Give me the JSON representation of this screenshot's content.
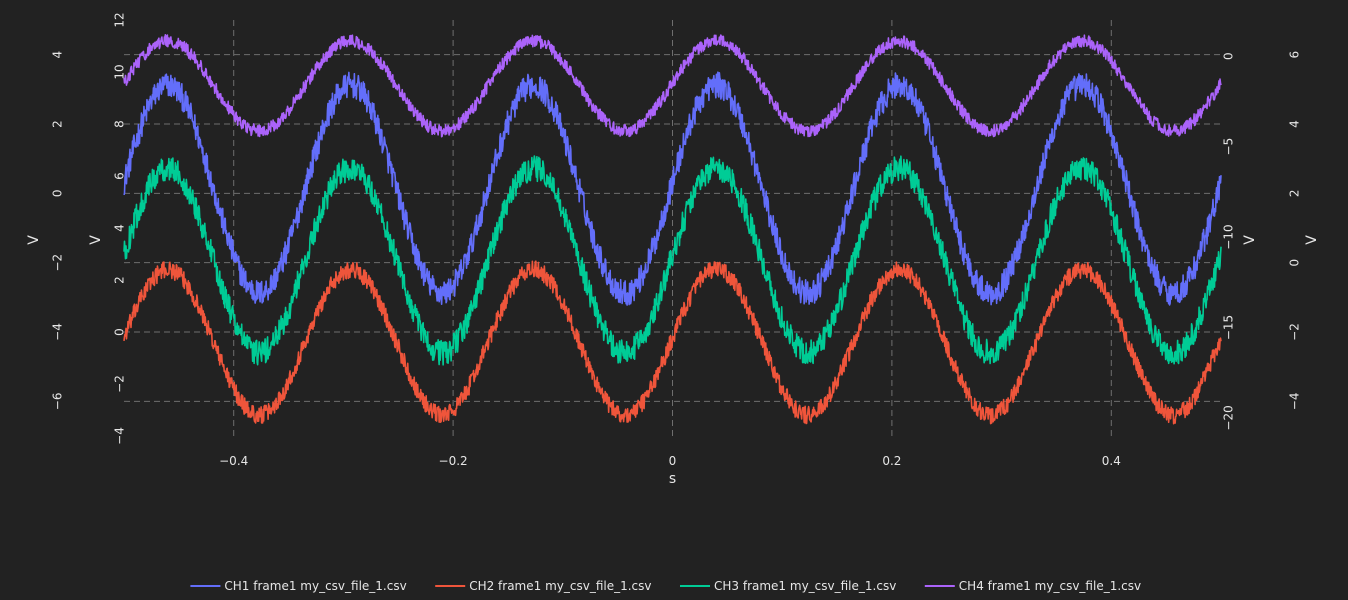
{
  "chart_data": {
    "type": "line",
    "title": "",
    "xlabel": "s",
    "xlim": [
      -0.5,
      0.5
    ],
    "x_ticks": [
      -0.4,
      -0.2,
      0,
      0.2,
      0.4
    ],
    "x_tick_labels": [
      "−0.4",
      "−0.2",
      "0",
      "0.2",
      "0.4"
    ],
    "grid": true,
    "legend_position": "bottom",
    "axes": [
      {
        "id": "y1",
        "label": "V",
        "ylim": [
          -7,
          5
        ],
        "ticks": [
          -6,
          -4,
          -2,
          0,
          2,
          4
        ],
        "tick_labels": [
          "−6",
          "−4",
          "−2",
          "0",
          "2",
          "4"
        ]
      },
      {
        "id": "y2",
        "label": "V",
        "ylim": [
          -4,
          12
        ],
        "ticks": [
          -4,
          -2,
          0,
          2,
          4,
          6,
          8,
          10,
          12
        ],
        "tick_labels": [
          "−4",
          "−2",
          "0",
          "2",
          "4",
          "6",
          "8",
          "10",
          "12"
        ]
      },
      {
        "id": "y3",
        "label": "V",
        "ylim": [
          -21,
          2
        ],
        "ticks": [
          -20,
          -15,
          -10,
          -5,
          0
        ],
        "tick_labels": [
          "−20",
          "−15",
          "−10",
          "−5",
          "0"
        ]
      },
      {
        "id": "y4",
        "label": "V",
        "ylim": [
          -5,
          7
        ],
        "ticks": [
          -4,
          -2,
          0,
          2,
          4,
          6
        ],
        "tick_labels": [
          "−4",
          "−2",
          "0",
          "2",
          "4",
          "6"
        ]
      }
    ],
    "series": [
      {
        "name": "CH1 frame1 my_csv_file_1.csv",
        "color": "#636efa",
        "axis": "y2",
        "waveform": "sine",
        "frequency_hz": 6,
        "peak_x": [
          -0.46,
          -0.295,
          -0.125,
          0.04,
          0.21,
          0.375
        ],
        "trough_x": [
          -0.375,
          -0.21,
          -0.04,
          0.125,
          0.295,
          0.46
        ],
        "max": 9.5,
        "min": 1.5,
        "noise_amplitude": 0.5
      },
      {
        "name": "CH2 frame1 my_csv_file_1.csv",
        "color": "#ef553b",
        "axis": "y1",
        "waveform": "sine",
        "frequency_hz": 6,
        "peak_x": [
          -0.46,
          -0.295,
          -0.125,
          0.04,
          0.21,
          0.375
        ],
        "trough_x": [
          -0.375,
          -0.21,
          -0.04,
          0.125,
          0.295,
          0.46
        ],
        "max": -2.2,
        "min": -6.4,
        "noise_amplitude": 0.25
      },
      {
        "name": "CH3 frame1 my_csv_file_1.csv",
        "color": "#00cc96",
        "axis": "y3",
        "waveform": "sine",
        "frequency_hz": 6,
        "peak_x": [
          -0.46,
          -0.295,
          -0.125,
          0.04,
          0.21,
          0.375
        ],
        "trough_x": [
          -0.375,
          -0.21,
          -0.04,
          0.125,
          0.295,
          0.46
        ],
        "max": -6.2,
        "min": -16.4,
        "noise_amplitude": 0.7
      },
      {
        "name": "CH4 frame1 my_csv_file_1.csv",
        "color": "#ab63fa",
        "axis": "y4",
        "waveform": "sine",
        "frequency_hz": 6,
        "peak_x": [
          -0.46,
          -0.295,
          -0.125,
          0.04,
          0.21,
          0.375
        ],
        "trough_x": [
          -0.375,
          -0.21,
          -0.04,
          0.125,
          0.295,
          0.46
        ],
        "max": 6.4,
        "min": 3.8,
        "noise_amplitude": 0.18
      }
    ]
  }
}
